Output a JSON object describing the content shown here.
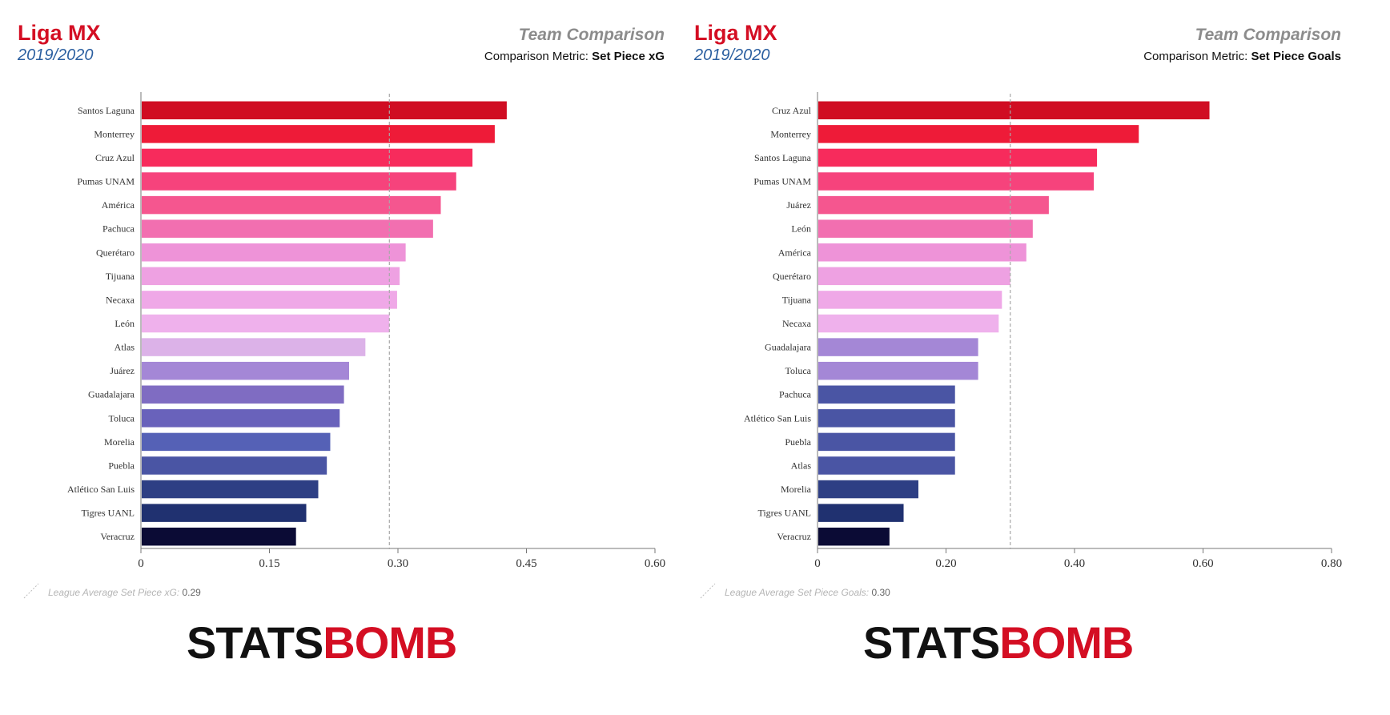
{
  "chart_data": [
    {
      "type": "bar",
      "orientation": "horizontal",
      "league": "Liga MX",
      "season": "2019/2020",
      "title": "Team Comparison",
      "metric_label": "Comparison Metric:",
      "metric_name": "Set Piece xG",
      "xlabel": "Set Piece xG",
      "xlim": [
        0,
        0.6
      ],
      "xticks": [
        "0",
        "0.15",
        "0.30",
        "0.45",
        "0.60"
      ],
      "xtick_values": [
        0,
        0.15,
        0.3,
        0.45,
        0.6
      ],
      "average_label": "League Average Set Piece xG:",
      "average_value": 0.29,
      "average_text": "0.29",
      "grid": false,
      "categories": [
        "Santos Laguna",
        "Monterrey",
        "Cruz Azul",
        "Pumas UNAM",
        "América",
        "Pachuca",
        "Querétaro",
        "Tijuana",
        "Necaxa",
        "León",
        "Atlas",
        "Juárez",
        "Guadalajara",
        "Toluca",
        "Morelia",
        "Puebla",
        "Atlético San Luis",
        "Tigres UANL",
        "Veracruz"
      ],
      "values": [
        0.427,
        0.413,
        0.387,
        0.368,
        0.35,
        0.341,
        0.309,
        0.302,
        0.299,
        0.29,
        0.262,
        0.243,
        0.237,
        0.232,
        0.221,
        0.217,
        0.207,
        0.193,
        0.181
      ],
      "colors": [
        "#d00d22",
        "#ee1b38",
        "#f72b5c",
        "#f6437c",
        "#f5568f",
        "#f26fb0",
        "#ee93d8",
        "#eea1e2",
        "#efa8e7",
        "#efb1ec",
        "#dcb2e8",
        "#a487d6",
        "#7f6cc2",
        "#6962bb",
        "#5561b6",
        "#4a55a4",
        "#2e3f84",
        "#203170",
        "#0b0b35"
      ]
    },
    {
      "type": "bar",
      "orientation": "horizontal",
      "league": "Liga MX",
      "season": "2019/2020",
      "title": "Team Comparison",
      "metric_label": "Comparison Metric:",
      "metric_name": "Set Piece Goals",
      "xlabel": "Set Piece Goals",
      "xlim": [
        0,
        0.8
      ],
      "xticks": [
        "0",
        "0.20",
        "0.40",
        "0.60",
        "0.80"
      ],
      "xtick_values": [
        0,
        0.2,
        0.4,
        0.6,
        0.8
      ],
      "average_label": "League Average Set Piece Goals:",
      "average_value": 0.3,
      "average_text": "0.30",
      "grid": false,
      "categories": [
        "Cruz Azul",
        "Monterrey",
        "Santos Laguna",
        "Pumas UNAM",
        "Juárez",
        "León",
        "América",
        "Querétaro",
        "Tijuana",
        "Necaxa",
        "Guadalajara",
        "Toluca",
        "Pachuca",
        "Atlético San Luis",
        "Puebla",
        "Atlas",
        "Morelia",
        "Tigres UANL",
        "Veracruz"
      ],
      "values": [
        0.61,
        0.5,
        0.435,
        0.43,
        0.36,
        0.335,
        0.325,
        0.3,
        0.287,
        0.282,
        0.25,
        0.25,
        0.214,
        0.214,
        0.214,
        0.214,
        0.157,
        0.134,
        0.112
      ],
      "colors": [
        "#d00d22",
        "#ee1b38",
        "#f72b5c",
        "#f6437c",
        "#f5568f",
        "#f26fb0",
        "#ee93d8",
        "#eea1e2",
        "#efa8e7",
        "#efb1ec",
        "#a487d6",
        "#a487d6",
        "#4a55a4",
        "#4a55a4",
        "#4a55a4",
        "#4a55a4",
        "#2e3f84",
        "#203170",
        "#0b0b35"
      ]
    }
  ],
  "logo": {
    "part1": "STATS",
    "part2": "BOMB"
  }
}
